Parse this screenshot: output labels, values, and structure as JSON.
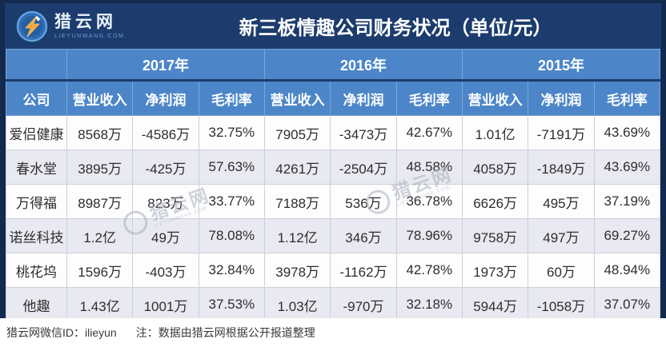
{
  "brand": {
    "logo_text": "猎云网",
    "logo_sub": "LIEYUNWANG.COM"
  },
  "chart_data": {
    "type": "table",
    "title": "新三板情趣公司财务状况（单位/元）",
    "corner_label": "公司",
    "column_groups": [
      "2017年",
      "2016年",
      "2015年"
    ],
    "metrics": [
      "营业收入",
      "净利润",
      "毛利率"
    ],
    "rows": [
      {
        "company": "爱侣健康",
        "values": [
          "8568万",
          "-4586万",
          "32.75%",
          "7905万",
          "-3473万",
          "42.67%",
          "1.01亿",
          "-7191万",
          "43.69%"
        ]
      },
      {
        "company": "春水堂",
        "values": [
          "3895万",
          "-425万",
          "57.63%",
          "4261万",
          "-2504万",
          "48.58%",
          "4058万",
          "-1849万",
          "43.69%"
        ]
      },
      {
        "company": "万得福",
        "values": [
          "8987万",
          "823万",
          "33.77%",
          "7188万",
          "536万",
          "36.78%",
          "6626万",
          "495万",
          "37.19%"
        ]
      },
      {
        "company": "诺丝科技",
        "values": [
          "1.2亿",
          "49万",
          "78.08%",
          "1.12亿",
          "346万",
          "78.96%",
          "9758万",
          "497万",
          "69.27%"
        ]
      },
      {
        "company": "桃花坞",
        "values": [
          "1596万",
          "-403万",
          "32.84%",
          "3978万",
          "-1162万",
          "42.78%",
          "1973万",
          "60万",
          "48.94%"
        ]
      },
      {
        "company": "他趣",
        "values": [
          "1.43亿",
          "1001万",
          "37.53%",
          "1.03亿",
          "-970万",
          "32.18%",
          "5944万",
          "-1058万",
          "37.07%"
        ]
      }
    ]
  },
  "footer": {
    "wechat_label": "猎云网微信ID：ilieyun",
    "note": "注：数据由猎云网根据公开报道整理"
  },
  "watermark": {
    "text": "猎云网"
  },
  "colors": {
    "banner_bg": "#1c3c6e",
    "frame_bg": "#13294d",
    "header_cell_bg": "#4c86c8",
    "row_bg": "#fdfdfe",
    "row_alt_bg": "#e8e9f1",
    "logo_bolt_orange": "#f2a93b",
    "logo_circle_blue": "#2e6cb5"
  }
}
